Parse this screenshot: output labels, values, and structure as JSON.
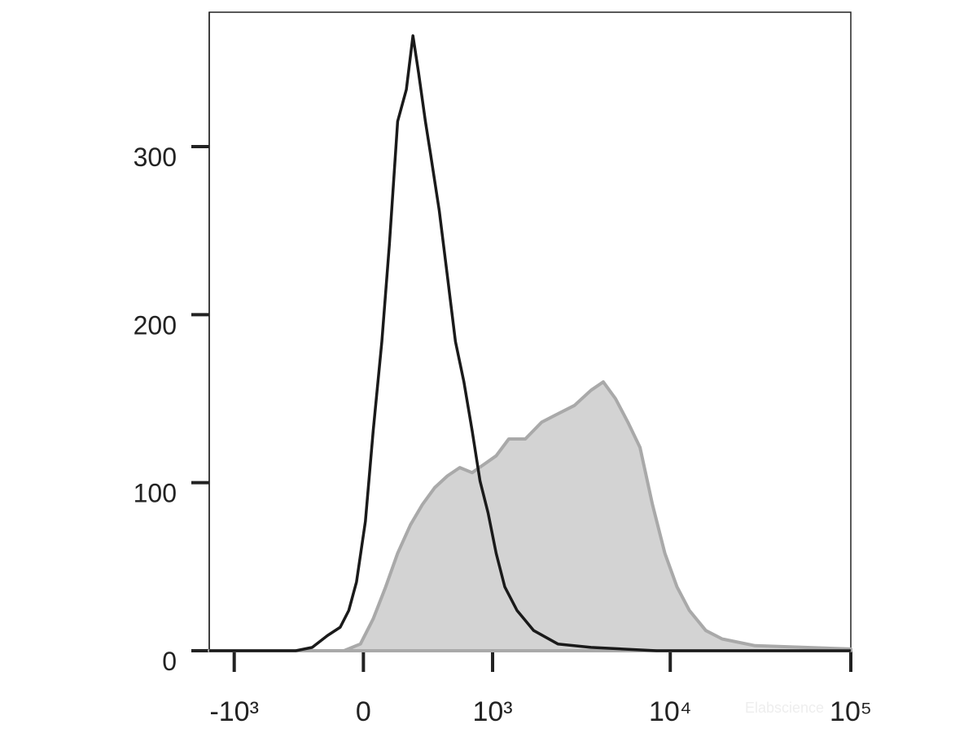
{
  "chart_data": {
    "type": "histogram-overlay",
    "xscale": "logicle",
    "xlim": [
      -1400,
      100000
    ],
    "xticks": [
      {
        "value": -1000,
        "label": "-10³"
      },
      0,
      {
        "value": 1000,
        "label": "10³"
      },
      {
        "value": 10000,
        "label": "10⁴"
      },
      {
        "value": 100000,
        "label": "10⁵"
      }
    ],
    "ylim": [
      0,
      380
    ],
    "yticks": [
      0,
      100,
      200,
      300
    ],
    "grid": false,
    "watermark": "Elabscience",
    "series": [
      {
        "style": "filled",
        "color": "#a9a9a9",
        "fill": "#d3d3d3",
        "x": [
          -1400,
          -100,
          -15,
          50,
          115,
          180,
          255,
          330,
          415,
          515,
          625,
          750,
          890,
          1050,
          1245,
          1550,
          1920,
          2370,
          2935,
          3630,
          4250,
          4970,
          5820,
          6800,
          7970,
          9330,
          10900,
          12760,
          15740,
          19430,
          29500,
          100000
        ],
        "values": [
          0,
          0,
          4,
          19,
          38,
          58,
          75,
          87,
          97,
          104,
          109,
          106,
          111,
          116,
          126,
          126,
          136,
          141,
          146,
          155,
          160,
          150,
          136,
          121,
          87,
          58,
          38,
          24,
          12,
          7,
          3,
          1
        ]
      },
      {
        "style": "line",
        "color": "#1a1a1a",
        "x": [
          -1400,
          -390,
          -280,
          -190,
          -120,
          -75,
          -35,
          10,
          50,
          95,
          135,
          180,
          230,
          270,
          305,
          350,
          385,
          450,
          515,
          585,
          665,
          750,
          840,
          940,
          1050,
          1180,
          1390,
          1730,
          2370,
          3630,
          8400,
          100000
        ],
        "values": [
          0,
          0,
          2,
          9,
          14,
          24,
          41,
          77,
          131,
          184,
          242,
          315,
          334,
          366,
          344,
          315,
          296,
          262,
          223,
          184,
          160,
          131,
          101,
          82,
          58,
          38,
          24,
          12,
          4,
          2,
          0,
          0
        ]
      }
    ]
  }
}
